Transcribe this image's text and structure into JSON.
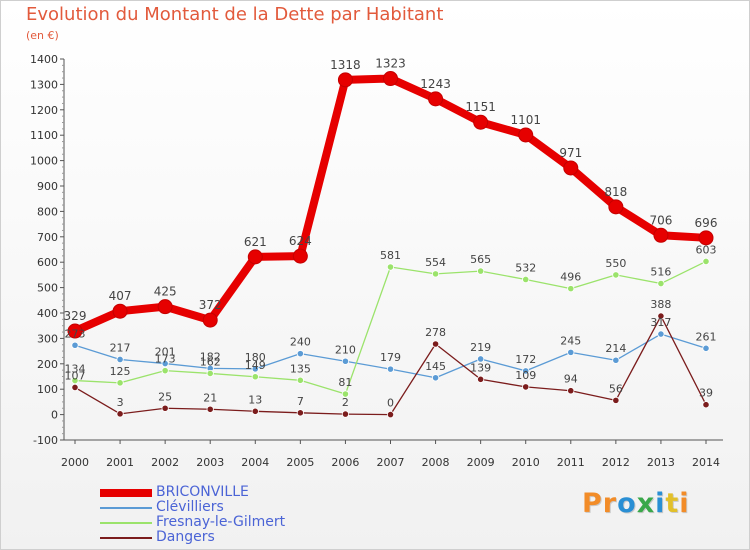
{
  "title": "Evolution du Montant de la Dette par Habitant",
  "subtitle": "(en €)",
  "chart_data": {
    "type": "line",
    "title": "Evolution du Montant de la Dette par Habitant",
    "ylabel": "(en €)",
    "x": [
      2000,
      2001,
      2002,
      2003,
      2004,
      2005,
      2006,
      2007,
      2008,
      2009,
      2010,
      2011,
      2012,
      2013,
      2014
    ],
    "ylim": [
      -100,
      1400
    ],
    "yticks": [
      -100,
      0,
      100,
      200,
      300,
      400,
      500,
      600,
      700,
      800,
      900,
      1000,
      1100,
      1200,
      1300,
      1400
    ],
    "grid": false,
    "legend_position": "bottom-left",
    "series": [
      {
        "name": "BRICONVILLE",
        "color": "#e60000",
        "values": [
          329,
          407,
          425,
          372,
          621,
          624,
          1318,
          1323,
          1243,
          1151,
          1101,
          971,
          818,
          706,
          696
        ]
      },
      {
        "name": "Clévilliers",
        "color": "#5b9bd5",
        "values": [
          273,
          217,
          201,
          182,
          180,
          240,
          210,
          179,
          145,
          219,
          172,
          245,
          214,
          317,
          261
        ]
      },
      {
        "name": "Fresnay-le-Gilmert",
        "color": "#9be36b",
        "values": [
          134,
          125,
          173,
          162,
          149,
          135,
          81,
          581,
          554,
          565,
          532,
          496,
          550,
          516,
          603
        ]
      },
      {
        "name": "Dangers",
        "color": "#7b1c1c",
        "values": [
          107,
          3,
          25,
          21,
          13,
          7,
          2,
          0,
          278,
          139,
          109,
          94,
          56,
          388,
          39
        ]
      }
    ]
  },
  "logo": {
    "text": "Proxiti",
    "letter_colors": [
      "#f28c28",
      "#f28c28",
      "#2a8fd4",
      "#3aa84a",
      "#2a8fd4",
      "#e2c02a",
      "#f28c28"
    ]
  }
}
